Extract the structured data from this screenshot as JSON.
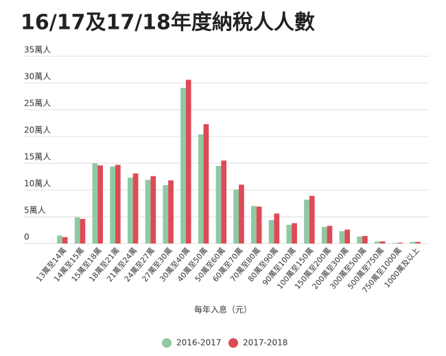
{
  "chart_data": {
    "type": "bar",
    "title": "16/17及17/18年度納稅人人數",
    "x_label": "每年入息（元）",
    "categories": [
      "13萬至14萬",
      "14萬至15萬",
      "15萬至18萬",
      "18萬至21萬",
      "21萬至24萬",
      "24萬至27萬",
      "27萬至30萬",
      "30萬至40萬",
      "40萬至50萬",
      "50萬至60萬",
      "60萬至70萬",
      "70萬至80萬",
      "80萬至90萬",
      "90萬至100萬",
      "100萬至150萬",
      "150萬至200萬",
      "200萬至300萬",
      "300萬至500萬",
      "500萬至750萬",
      "750萬至1000萬",
      "1000萬及以上"
    ],
    "series": [
      {
        "name": "2016-2017",
        "color": "#8fc9a3",
        "values": [
          1.5,
          4.9,
          15.0,
          14.4,
          12.3,
          11.9,
          10.9,
          29.1,
          20.4,
          14.5,
          10.1,
          7.0,
          4.4,
          3.5,
          8.2,
          3.1,
          2.3,
          1.3,
          0.4,
          0.1,
          0.3
        ]
      },
      {
        "name": "2017-2018",
        "color": "#dd4b56",
        "values": [
          1.2,
          4.6,
          14.6,
          14.7,
          13.1,
          12.6,
          11.8,
          30.6,
          22.3,
          15.5,
          11.0,
          6.9,
          5.6,
          3.8,
          8.9,
          3.3,
          2.6,
          1.4,
          0.4,
          0.15,
          0.3
        ]
      }
    ],
    "ylim": [
      0,
      35
    ],
    "yticks": [
      0,
      {
        "value": 5,
        "label": "5萬人"
      },
      {
        "value": 10,
        "label": "10萬人"
      },
      {
        "value": 15,
        "label": "15萬人"
      },
      {
        "value": 20,
        "label": "20萬人"
      },
      {
        "value": 25,
        "label": "25萬人"
      },
      {
        "value": 30,
        "label": "30萬人"
      },
      {
        "value": 35,
        "label": "35萬人"
      }
    ],
    "grid": true,
    "legend": "bottom"
  }
}
